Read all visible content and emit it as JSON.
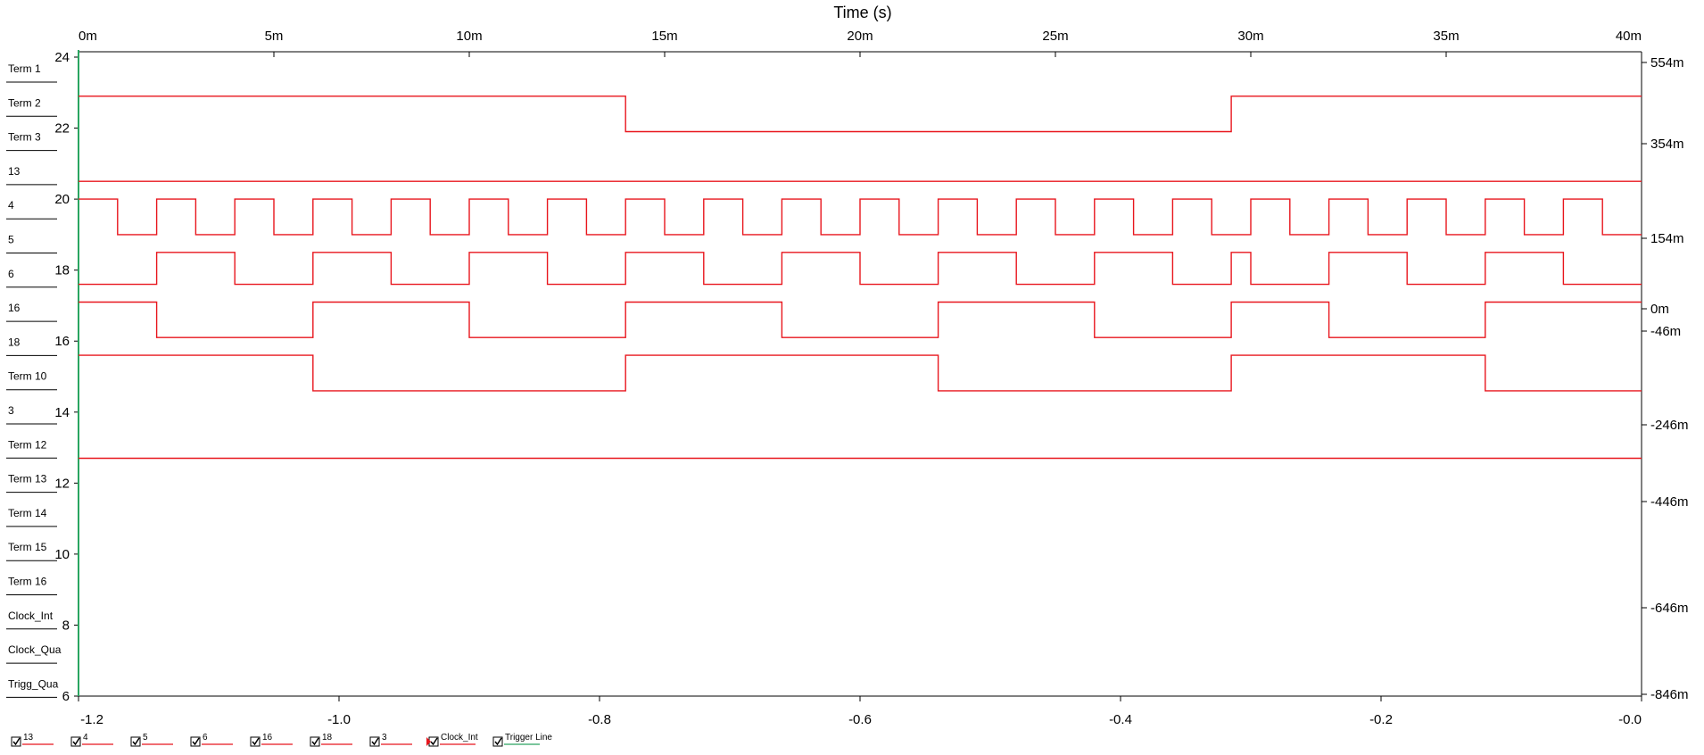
{
  "chart_data": {
    "type": "line",
    "title": "Time (s)",
    "top_axis": {
      "range": [
        0,
        40
      ],
      "unit_suffix": "m",
      "ticks": [
        "0m",
        "5m",
        "10m",
        "15m",
        "20m",
        "25m",
        "30m",
        "35m",
        "40m"
      ]
    },
    "bottom_axis": {
      "range": [
        -1.2,
        0.0
      ],
      "ticks": [
        "-1.2",
        "-1.0",
        "-0.8",
        "-0.6",
        "-0.4",
        "-0.2",
        "-0.0"
      ]
    },
    "left_axis": {
      "range": [
        6,
        24
      ],
      "ticks": [
        "24",
        "22",
        "20",
        "18",
        "16",
        "14",
        "12",
        "10",
        "8",
        "6"
      ]
    },
    "right_axis": {
      "ticks": [
        "554m",
        "354m",
        "154m",
        "0m",
        "-46m",
        "-246m",
        "-446m",
        "-646m",
        "-846m"
      ]
    },
    "channel_labels": [
      "Term 1",
      "Term 2",
      "Term 3",
      "13",
      "4",
      "5",
      "6",
      "16",
      "18",
      "Term 10",
      "3",
      "Term 12",
      "Term 13",
      "Term 14",
      "Term 15",
      "Term 16",
      "Clock_Int",
      "Clock_Qua",
      "Trigg_Qua"
    ],
    "series": [
      {
        "name": "13",
        "low": 21.9,
        "high": 22.9,
        "transitions": [
          0,
          14,
          29.5,
          40
        ],
        "start_state": 1
      },
      {
        "name": "4",
        "low": 20.5,
        "high": 20.5,
        "transitions": [
          0,
          40
        ],
        "start_state": 1
      },
      {
        "name": "5",
        "low": 19.0,
        "high": 20.0,
        "transitions": [
          0,
          1,
          2,
          3,
          4,
          5,
          6,
          7,
          8,
          9,
          10,
          11,
          12,
          13,
          14,
          15,
          16,
          17,
          18,
          19,
          20,
          21,
          22,
          23,
          24,
          25,
          26,
          27,
          28,
          29,
          30,
          31,
          32,
          33,
          34,
          35,
          36,
          37,
          38,
          39,
          40
        ],
        "start_state": 1
      },
      {
        "name": "6",
        "low": 17.6,
        "high": 18.5,
        "transitions": [
          0,
          2,
          4,
          6,
          8,
          10,
          12,
          14,
          16,
          18,
          20,
          22,
          24,
          26,
          28,
          29.5,
          30,
          32,
          34,
          36,
          38,
          40
        ],
        "start_state": 0
      },
      {
        "name": "16",
        "low": 16.1,
        "high": 17.1,
        "transitions": [
          0,
          2,
          6,
          10,
          14,
          18,
          22,
          26,
          29.5,
          32,
          36,
          40
        ],
        "start_state": 1
      },
      {
        "name": "18",
        "low": 14.6,
        "high": 15.6,
        "transitions": [
          0,
          6,
          14,
          22,
          29.5,
          36,
          40
        ],
        "start_state": 1
      },
      {
        "name": "3",
        "low": 12.7,
        "high": 12.7,
        "transitions": [
          0,
          40
        ],
        "start_state": 1
      }
    ],
    "legend": [
      {
        "name": "13",
        "checked": true,
        "color": "#e8161d"
      },
      {
        "name": "4",
        "checked": true,
        "color": "#e8161d"
      },
      {
        "name": "5",
        "checked": true,
        "color": "#e8161d"
      },
      {
        "name": "6",
        "checked": true,
        "color": "#e8161d"
      },
      {
        "name": "16",
        "checked": true,
        "color": "#e8161d"
      },
      {
        "name": "18",
        "checked": true,
        "color": "#e8161d"
      },
      {
        "name": "3",
        "checked": true,
        "color": "#e8161d"
      },
      {
        "name": "Clock_Int",
        "checked": true,
        "color": "#e8161d"
      },
      {
        "name": "Trigger Line",
        "checked": true,
        "color": "#2aa561"
      }
    ],
    "trigger_line": {
      "x": 0,
      "color": "#2aa561"
    },
    "grid": false,
    "colors": {
      "trace": "#e8161d",
      "trigger": "#2aa561",
      "axis": "#000000"
    }
  }
}
